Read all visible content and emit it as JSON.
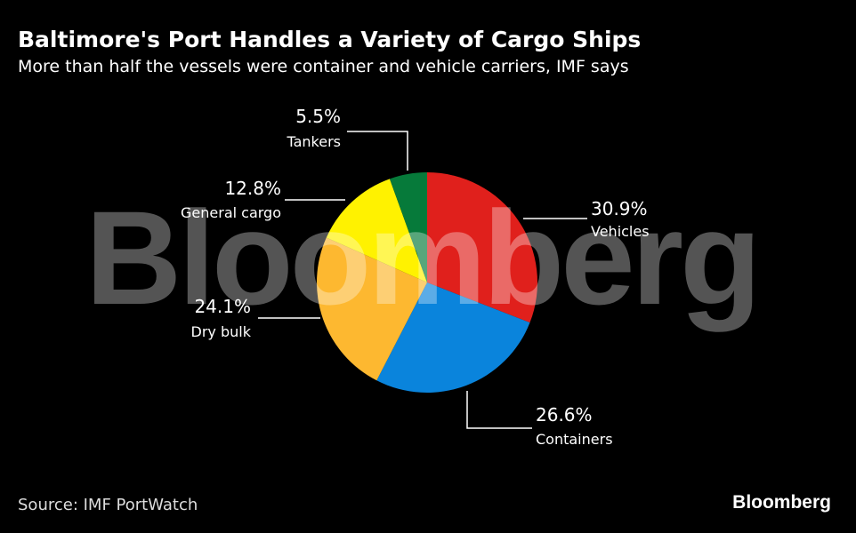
{
  "title": "Baltimore's Port Handles a Variety of Cargo Ships",
  "subtitle": "More than half the vessels were container and vehicle carriers, IMF says",
  "source": "Source: IMF PortWatch",
  "logo": "Bloomberg",
  "watermark": "Bloomberg",
  "chart_data": {
    "type": "pie",
    "title": "Baltimore's Port Handles a Variety of Cargo Ships",
    "start": "12 o'clock, clockwise",
    "slices": [
      {
        "label": "Vehicles",
        "value": 30.9,
        "value_label": "30.9%",
        "color": "#e0201c"
      },
      {
        "label": "Containers",
        "value": 26.6,
        "value_label": "26.6%",
        "color": "#0a84dc"
      },
      {
        "label": "Dry bulk",
        "value": 24.1,
        "value_label": "24.1%",
        "color": "#fdb830"
      },
      {
        "label": "General cargo",
        "value": 12.8,
        "value_label": "12.8%",
        "color": "#fff200"
      },
      {
        "label": "Tankers",
        "value": 5.5,
        "value_label": "5.5%",
        "color": "#067a3a"
      }
    ]
  }
}
